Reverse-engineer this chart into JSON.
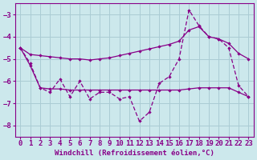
{
  "xlabel": "Windchill (Refroidissement éolien,°C)",
  "bg_color": "#cce8ec",
  "line_color": "#880088",
  "grid_color": "#aaccd4",
  "x": [
    0,
    1,
    2,
    3,
    4,
    5,
    6,
    7,
    8,
    9,
    10,
    11,
    12,
    13,
    14,
    15,
    16,
    17,
    18,
    19,
    20,
    21,
    22,
    23
  ],
  "series_jagged": [
    -4.5,
    -5.2,
    -6.3,
    -6.5,
    -5.9,
    -6.7,
    -6.0,
    -6.8,
    -6.5,
    -6.5,
    -6.8,
    -6.7,
    -7.8,
    -7.4,
    -6.1,
    -5.8,
    -5.0,
    -2.8,
    -3.5,
    -4.0,
    -4.1,
    -4.5,
    -6.2,
    -6.7
  ],
  "series_upper": [
    -4.5,
    -4.8,
    -4.85,
    -4.9,
    -4.95,
    -5.0,
    -5.0,
    -5.05,
    -5.0,
    -4.95,
    -4.85,
    -4.75,
    -4.65,
    -4.55,
    -4.45,
    -4.35,
    -4.2,
    -3.7,
    -3.55,
    -4.0,
    -4.1,
    -4.3,
    -4.75,
    -5.0
  ],
  "series_lower": [
    -4.5,
    -5.3,
    -6.3,
    -6.35,
    -6.35,
    -6.4,
    -6.4,
    -6.4,
    -6.4,
    -6.4,
    -6.4,
    -6.4,
    -6.4,
    -6.4,
    -6.4,
    -6.4,
    -6.4,
    -6.35,
    -6.3,
    -6.3,
    -6.3,
    -6.3,
    -6.5,
    -6.7
  ],
  "ylim": [
    -8.5,
    -2.5
  ],
  "xlim": [
    -0.5,
    23.5
  ],
  "yticks": [
    -8,
    -7,
    -6,
    -5,
    -4,
    -3
  ],
  "xticks": [
    0,
    1,
    2,
    3,
    4,
    5,
    6,
    7,
    8,
    9,
    10,
    11,
    12,
    13,
    14,
    15,
    16,
    17,
    18,
    19,
    20,
    21,
    22,
    23
  ],
  "fontsize_tick": 6.5,
  "fontsize_xlabel": 6.5
}
